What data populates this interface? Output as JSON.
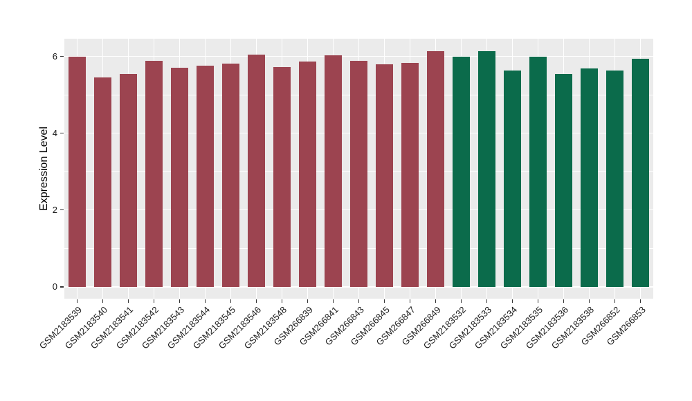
{
  "chart_data": {
    "type": "bar",
    "title": "",
    "xlabel": "",
    "ylabel": "Expression Level",
    "categories": [
      "GSM2183539",
      "GSM2183540",
      "GSM2183541",
      "GSM2183542",
      "GSM2183543",
      "GSM2183544",
      "GSM2183545",
      "GSM2183546",
      "GSM2183548",
      "GSM266839",
      "GSM266841",
      "GSM266843",
      "GSM266845",
      "GSM266847",
      "GSM266849",
      "GSM2183532",
      "GSM2183533",
      "GSM2183534",
      "GSM2183535",
      "GSM2183536",
      "GSM2183538",
      "GSM266852",
      "GSM266853"
    ],
    "values": [
      6.0,
      5.45,
      5.55,
      5.89,
      5.71,
      5.75,
      5.81,
      6.04,
      5.72,
      5.87,
      6.02,
      5.89,
      5.79,
      5.83,
      6.14,
      6.0,
      6.13,
      5.64,
      6.0,
      5.55,
      5.69,
      5.63,
      5.93
    ],
    "bar_groups": [
      0,
      0,
      0,
      0,
      0,
      0,
      0,
      0,
      0,
      0,
      0,
      0,
      0,
      0,
      0,
      1,
      1,
      1,
      1,
      1,
      1,
      1,
      1
    ],
    "group_colors": [
      "#9C4450",
      "#0B6B4B"
    ],
    "yticks": [
      0,
      2,
      4,
      6
    ],
    "minor_yticks": [
      1,
      3,
      5
    ],
    "ylim": [
      -0.31,
      6.46
    ],
    "bar_width_frac": 0.67,
    "grid": "on",
    "legend_position": "none",
    "panel_bg": "#EBEBEB",
    "grid_color": "#FFFFFF",
    "tick_color": "#333333",
    "text_color": "#1a1a1a"
  }
}
